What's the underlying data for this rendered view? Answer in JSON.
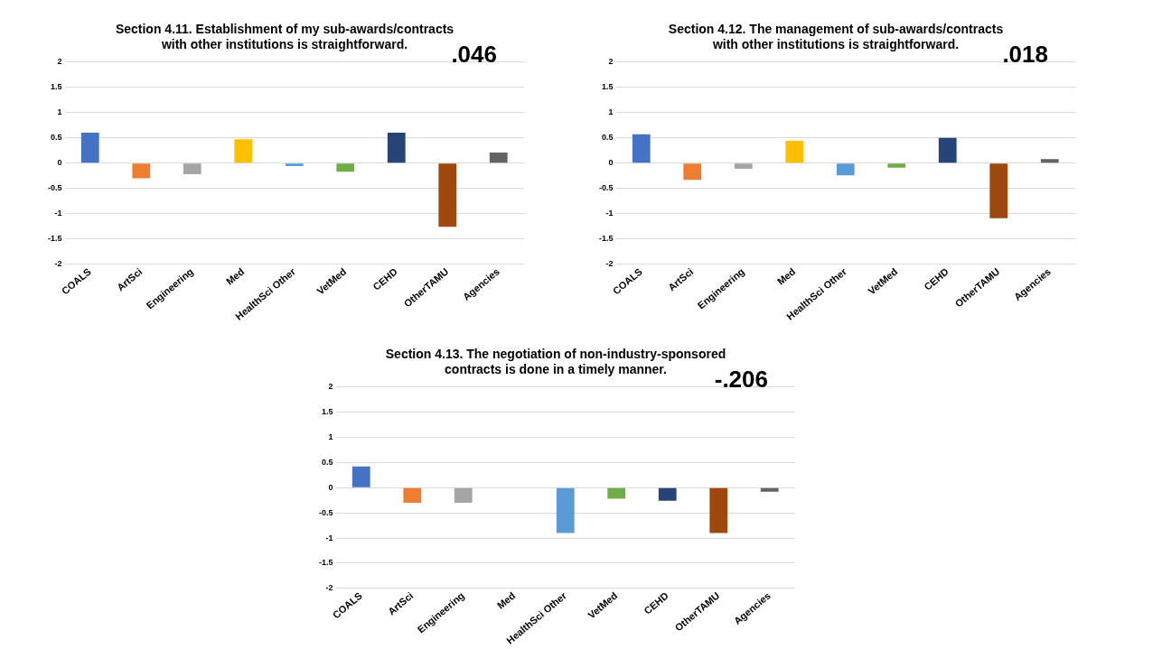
{
  "chart_data": [
    {
      "type": "bar",
      "title": "Section 4.11. Establishment of my sub-awards/contracts\nwith other institutions is straightforward.",
      "annotations": [
        ".046"
      ],
      "categories": [
        "COALS",
        "ArtSci",
        "Engineering",
        "Med",
        "HealthSci Other",
        "VetMed",
        "CEHD",
        "OtherTAMU",
        "Agencies"
      ],
      "values": [
        0.6,
        -0.3,
        -0.22,
        0.47,
        -0.06,
        -0.17,
        0.6,
        -1.26,
        0.21
      ],
      "colors": [
        "#4472c4",
        "#ed7d31",
        "#a5a5a5",
        "#ffc000",
        "#5b9bd5",
        "#70ad47",
        "#264478",
        "#9e480e",
        "#636363"
      ],
      "ylim": [
        -2,
        2
      ],
      "yticks": [
        -2,
        -1.5,
        -1,
        -0.5,
        0,
        0.5,
        1,
        1.5,
        2
      ],
      "grid": "y",
      "legend": false
    },
    {
      "type": "bar",
      "title": "Section 4.12. The management of sub-awards/contracts\nwith other institutions is straightforward.",
      "annotations": [
        ".018"
      ],
      "categories": [
        "COALS",
        "ArtSci",
        "Engineering",
        "Med",
        "HealthSci Other",
        "VetMed",
        "CEHD",
        "OtherTAMU",
        "Agencies"
      ],
      "values": [
        0.57,
        -0.33,
        -0.11,
        0.44,
        -0.24,
        -0.09,
        0.5,
        -1.09,
        0.08
      ],
      "colors": [
        "#4472c4",
        "#ed7d31",
        "#a5a5a5",
        "#ffc000",
        "#5b9bd5",
        "#70ad47",
        "#264478",
        "#9e480e",
        "#636363"
      ],
      "ylim": [
        -2,
        2
      ],
      "yticks": [
        -2,
        -1.5,
        -1,
        -0.5,
        0,
        0.5,
        1,
        1.5,
        2
      ],
      "grid": "y",
      "legend": false
    },
    {
      "type": "bar",
      "title": "Section 4.13. The negotiation of non-industry-sponsored\ncontracts is done in a timely manner.",
      "annotations": [
        "-.206"
      ],
      "categories": [
        "COALS",
        "ArtSci",
        "Engineering",
        "Med",
        "HealthSci Other",
        "VetMed",
        "CEHD",
        "OtherTAMU",
        "Agencies"
      ],
      "values": [
        0.42,
        -0.3,
        -0.3,
        null,
        -0.9,
        -0.22,
        -0.26,
        -0.9,
        -0.08
      ],
      "colors": [
        "#4472c4",
        "#ed7d31",
        "#a5a5a5",
        "#ffc000",
        "#5b9bd5",
        "#70ad47",
        "#264478",
        "#9e480e",
        "#636363"
      ],
      "ylim": [
        -2,
        2
      ],
      "yticks": [
        -2,
        -1.5,
        -1,
        -0.5,
        0,
        0.5,
        1,
        1.5,
        2
      ],
      "grid": "y",
      "legend": false
    }
  ]
}
